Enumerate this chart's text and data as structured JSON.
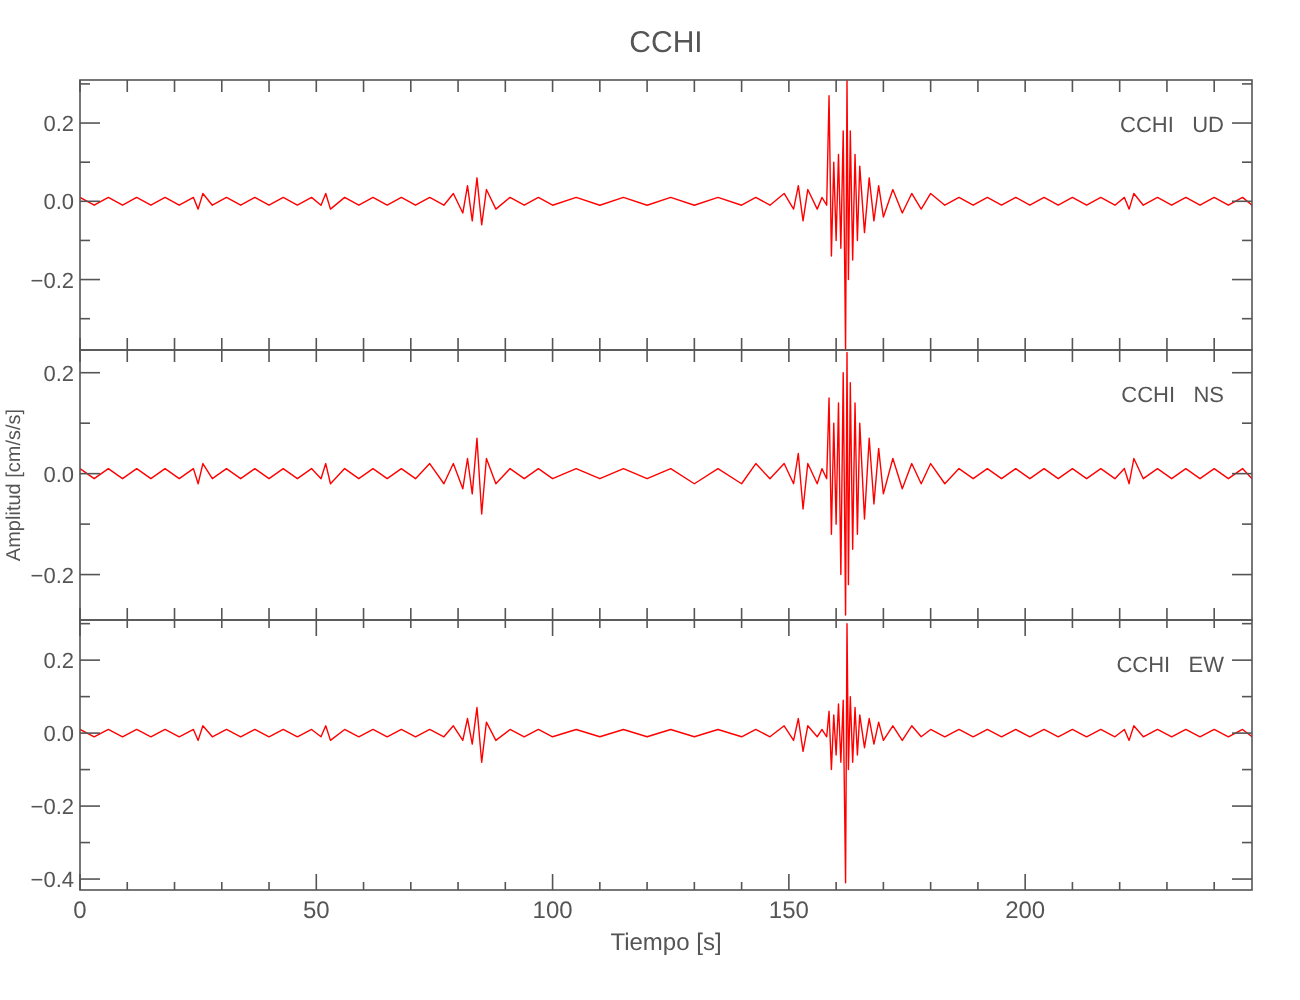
{
  "chart_data": [
    {
      "type": "line",
      "title": "CCHI",
      "annotations": [
        "CCHI   UD"
      ],
      "tick_labels": "y",
      "xlim": [
        0,
        248
      ],
      "xticks": [
        {
          "value": 0,
          "label": null
        },
        {
          "value": 10,
          "label": null
        },
        {
          "value": 20,
          "label": null
        },
        {
          "value": 30,
          "label": null
        },
        {
          "value": 40,
          "label": null
        },
        {
          "value": 50,
          "label": null
        },
        {
          "value": 60,
          "label": null
        },
        {
          "value": 70,
          "label": null
        },
        {
          "value": 80,
          "label": null
        },
        {
          "value": 90,
          "label": null
        },
        {
          "value": 100,
          "label": null
        },
        {
          "value": 110,
          "label": null
        },
        {
          "value": 120,
          "label": null
        },
        {
          "value": 130,
          "label": null
        },
        {
          "value": 140,
          "label": null
        },
        {
          "value": 150,
          "label": null
        },
        {
          "value": 160,
          "label": null
        },
        {
          "value": 170,
          "label": null
        },
        {
          "value": 180,
          "label": null
        },
        {
          "value": 190,
          "label": null
        },
        {
          "value": 200,
          "label": null
        },
        {
          "value": 210,
          "label": null
        },
        {
          "value": 220,
          "label": null
        },
        {
          "value": 230,
          "label": null
        },
        {
          "value": 240,
          "label": null
        }
      ],
      "ylim": [
        -0.38,
        0.31
      ],
      "yticks": [
        {
          "value": 0.3,
          "label": null
        },
        {
          "value": 0.2,
          "label": "0.2"
        },
        {
          "value": 0.1,
          "label": null
        },
        {
          "value": 0,
          "label": "0.0"
        },
        {
          "value": -0.1,
          "label": null
        },
        {
          "value": -0.2,
          "label": "−0.2"
        },
        {
          "value": -0.3,
          "label": null
        }
      ],
      "x": [
        0,
        3,
        6,
        9,
        12,
        15,
        18,
        21,
        24,
        25,
        26,
        28,
        31,
        34,
        37,
        40,
        43,
        46,
        49,
        51,
        52,
        53,
        56,
        59,
        62,
        65,
        68,
        71,
        74,
        77,
        79,
        81,
        82,
        83,
        84,
        85,
        86,
        88,
        91,
        94,
        97,
        100,
        105,
        110,
        115,
        120,
        125,
        130,
        135,
        140,
        143,
        146,
        149,
        151,
        152,
        153,
        154,
        156,
        157,
        158,
        158.5,
        159,
        159.5,
        160,
        160.5,
        161,
        161.5,
        162,
        162.3,
        162.6,
        163,
        163.5,
        164,
        164.5,
        165,
        166,
        167,
        168,
        169,
        170,
        172,
        174,
        176,
        178,
        180,
        183,
        186,
        189,
        192,
        195,
        198,
        201,
        204,
        207,
        210,
        213,
        216,
        219,
        221,
        222,
        223,
        225,
        228,
        231,
        234,
        237,
        240,
        243,
        246,
        248
      ],
      "series": [
        {
          "color": "#ff0000",
          "values": [
            0.01,
            -0.01,
            0.01,
            -0.01,
            0.01,
            -0.01,
            0.01,
            -0.01,
            0.01,
            -0.02,
            0.02,
            -0.01,
            0.01,
            -0.01,
            0.01,
            -0.01,
            0.01,
            -0.01,
            0.01,
            -0.01,
            0.02,
            -0.02,
            0.01,
            -0.01,
            0.01,
            -0.01,
            0.01,
            -0.01,
            0.01,
            -0.01,
            0.02,
            -0.03,
            0.04,
            -0.05,
            0.06,
            -0.06,
            0.03,
            -0.02,
            0.01,
            -0.01,
            0.01,
            -0.01,
            0.01,
            -0.01,
            0.01,
            -0.01,
            0.01,
            -0.01,
            0.01,
            -0.01,
            0.01,
            -0.01,
            0.02,
            -0.02,
            0.04,
            -0.05,
            0.03,
            -0.02,
            0.01,
            -0.01,
            0.27,
            -0.14,
            0.1,
            -0.1,
            0.12,
            -0.12,
            0.18,
            -0.38,
            0.31,
            -0.2,
            0.18,
            -0.15,
            0.12,
            -0.1,
            0.09,
            -0.08,
            0.06,
            -0.05,
            0.04,
            -0.04,
            0.03,
            -0.03,
            0.02,
            -0.02,
            0.02,
            -0.01,
            0.01,
            -0.01,
            0.01,
            -0.01,
            0.01,
            -0.01,
            0.01,
            -0.01,
            0.01,
            -0.01,
            0.01,
            -0.01,
            0.01,
            -0.02,
            0.02,
            -0.01,
            0.01,
            -0.01,
            0.01,
            -0.01,
            0.01,
            -0.01,
            0.01,
            -0.01
          ]
        }
      ]
    },
    {
      "type": "line",
      "ylabel": "Amplitud [cm/s/s]",
      "annotations": [
        "CCHI   NS"
      ],
      "tick_labels": "y",
      "xlim": [
        0,
        248
      ],
      "xticks": [
        {
          "value": 0,
          "label": null
        },
        {
          "value": 10,
          "label": null
        },
        {
          "value": 20,
          "label": null
        },
        {
          "value": 30,
          "label": null
        },
        {
          "value": 40,
          "label": null
        },
        {
          "value": 50,
          "label": null
        },
        {
          "value": 60,
          "label": null
        },
        {
          "value": 70,
          "label": null
        },
        {
          "value": 80,
          "label": null
        },
        {
          "value": 90,
          "label": null
        },
        {
          "value": 100,
          "label": null
        },
        {
          "value": 110,
          "label": null
        },
        {
          "value": 120,
          "label": null
        },
        {
          "value": 130,
          "label": null
        },
        {
          "value": 140,
          "label": null
        },
        {
          "value": 150,
          "label": null
        },
        {
          "value": 160,
          "label": null
        },
        {
          "value": 170,
          "label": null
        },
        {
          "value": 180,
          "label": null
        },
        {
          "value": 190,
          "label": null
        },
        {
          "value": 200,
          "label": null
        },
        {
          "value": 210,
          "label": null
        },
        {
          "value": 220,
          "label": null
        },
        {
          "value": 230,
          "label": null
        },
        {
          "value": 240,
          "label": null
        }
      ],
      "ylim": [
        -0.29,
        0.245
      ],
      "yticks": [
        {
          "value": 0.2,
          "label": "0.2"
        },
        {
          "value": 0.1,
          "label": null
        },
        {
          "value": 0,
          "label": "0.0"
        },
        {
          "value": -0.1,
          "label": null
        },
        {
          "value": -0.2,
          "label": "−0.2"
        }
      ],
      "x": [
        0,
        3,
        6,
        9,
        12,
        15,
        18,
        21,
        24,
        25,
        26,
        28,
        31,
        34,
        37,
        40,
        43,
        46,
        49,
        51,
        52,
        53,
        56,
        59,
        62,
        65,
        68,
        71,
        74,
        77,
        79,
        81,
        82,
        83,
        84,
        85,
        86,
        88,
        91,
        94,
        97,
        100,
        105,
        110,
        115,
        120,
        125,
        130,
        135,
        140,
        143,
        146,
        149,
        151,
        152,
        153,
        154,
        156,
        157,
        158,
        158.5,
        159,
        159.5,
        160,
        160.5,
        161,
        161.5,
        162,
        162.3,
        162.6,
        163,
        163.5,
        164,
        164.5,
        165,
        166,
        167,
        168,
        169,
        170,
        172,
        174,
        176,
        178,
        180,
        183,
        186,
        189,
        192,
        195,
        198,
        201,
        204,
        207,
        210,
        213,
        216,
        219,
        221,
        222,
        223,
        225,
        228,
        231,
        234,
        237,
        240,
        243,
        246,
        248
      ],
      "series": [
        {
          "color": "#ff0000",
          "values": [
            0.01,
            -0.01,
            0.01,
            -0.01,
            0.01,
            -0.01,
            0.01,
            -0.01,
            0.01,
            -0.02,
            0.02,
            -0.01,
            0.01,
            -0.01,
            0.01,
            -0.01,
            0.01,
            -0.01,
            0.01,
            -0.01,
            0.02,
            -0.02,
            0.01,
            -0.01,
            0.01,
            -0.01,
            0.01,
            -0.01,
            0.02,
            -0.02,
            0.02,
            -0.03,
            0.03,
            -0.04,
            0.07,
            -0.08,
            0.03,
            -0.02,
            0.01,
            -0.01,
            0.01,
            -0.01,
            0.01,
            -0.01,
            0.01,
            -0.01,
            0.01,
            -0.02,
            0.01,
            -0.02,
            0.02,
            -0.01,
            0.02,
            -0.02,
            0.04,
            -0.07,
            0.02,
            -0.02,
            0.01,
            -0.01,
            0.15,
            -0.12,
            0.1,
            -0.1,
            0.14,
            -0.2,
            0.2,
            -0.28,
            0.24,
            -0.22,
            0.18,
            -0.15,
            0.14,
            -0.12,
            0.1,
            -0.09,
            0.07,
            -0.06,
            0.05,
            -0.04,
            0.03,
            -0.03,
            0.02,
            -0.02,
            0.02,
            -0.02,
            0.01,
            -0.01,
            0.01,
            -0.01,
            0.01,
            -0.01,
            0.01,
            -0.01,
            0.01,
            -0.01,
            0.01,
            -0.01,
            0.01,
            -0.02,
            0.03,
            -0.01,
            0.01,
            -0.01,
            0.01,
            -0.01,
            0.01,
            -0.01,
            0.01,
            -0.01
          ]
        }
      ]
    },
    {
      "type": "line",
      "xlabel": "Tiempo [s]",
      "annotations": [
        "CCHI   EW"
      ],
      "xlim": [
        0,
        248
      ],
      "xticks": [
        {
          "value": 0,
          "label": "0"
        },
        {
          "value": 10,
          "label": null
        },
        {
          "value": 20,
          "label": null
        },
        {
          "value": 30,
          "label": null
        },
        {
          "value": 40,
          "label": null
        },
        {
          "value": 50,
          "label": "50"
        },
        {
          "value": 60,
          "label": null
        },
        {
          "value": 70,
          "label": null
        },
        {
          "value": 80,
          "label": null
        },
        {
          "value": 90,
          "label": null
        },
        {
          "value": 100,
          "label": "100"
        },
        {
          "value": 110,
          "label": null
        },
        {
          "value": 120,
          "label": null
        },
        {
          "value": 130,
          "label": null
        },
        {
          "value": 140,
          "label": null
        },
        {
          "value": 150,
          "label": "150"
        },
        {
          "value": 160,
          "label": null
        },
        {
          "value": 170,
          "label": null
        },
        {
          "value": 180,
          "label": null
        },
        {
          "value": 190,
          "label": null
        },
        {
          "value": 200,
          "label": "200"
        },
        {
          "value": 210,
          "label": null
        },
        {
          "value": 220,
          "label": null
        },
        {
          "value": 230,
          "label": null
        },
        {
          "value": 240,
          "label": null
        }
      ],
      "ylim": [
        -0.43,
        0.31
      ],
      "yticks": [
        {
          "value": 0.3,
          "label": null
        },
        {
          "value": 0.2,
          "label": "0.2"
        },
        {
          "value": 0.1,
          "label": null
        },
        {
          "value": 0,
          "label": "0.0"
        },
        {
          "value": -0.1,
          "label": null
        },
        {
          "value": -0.2,
          "label": "−0.2"
        },
        {
          "value": -0.3,
          "label": null
        },
        {
          "value": -0.4,
          "label": "−0.4"
        }
      ],
      "x": [
        0,
        3,
        6,
        9,
        12,
        15,
        18,
        21,
        24,
        25,
        26,
        28,
        31,
        34,
        37,
        40,
        43,
        46,
        49,
        51,
        52,
        53,
        56,
        59,
        62,
        65,
        68,
        71,
        74,
        77,
        79,
        81,
        82,
        83,
        84,
        85,
        86,
        88,
        91,
        94,
        97,
        100,
        105,
        110,
        115,
        120,
        125,
        130,
        135,
        140,
        143,
        146,
        149,
        151,
        152,
        153,
        154,
        156,
        157,
        158,
        158.5,
        159,
        159.5,
        160,
        160.5,
        161,
        161.5,
        162,
        162.3,
        162.6,
        163,
        163.5,
        164,
        164.5,
        165,
        166,
        167,
        168,
        169,
        170,
        172,
        174,
        176,
        178,
        180,
        183,
        186,
        189,
        192,
        195,
        198,
        201,
        204,
        207,
        210,
        213,
        216,
        219,
        221,
        222,
        223,
        225,
        228,
        231,
        234,
        237,
        240,
        243,
        246,
        248
      ],
      "series": [
        {
          "color": "#ff0000",
          "values": [
            0.01,
            -0.01,
            0.01,
            -0.01,
            0.01,
            -0.01,
            0.01,
            -0.01,
            0.01,
            -0.02,
            0.02,
            -0.01,
            0.01,
            -0.01,
            0.01,
            -0.01,
            0.01,
            -0.01,
            0.01,
            -0.01,
            0.02,
            -0.02,
            0.01,
            -0.01,
            0.01,
            -0.01,
            0.01,
            -0.01,
            0.01,
            -0.01,
            0.02,
            -0.02,
            0.04,
            -0.03,
            0.07,
            -0.08,
            0.03,
            -0.02,
            0.01,
            -0.01,
            0.01,
            -0.01,
            0.01,
            -0.01,
            0.01,
            -0.01,
            0.01,
            -0.01,
            0.01,
            -0.01,
            0.01,
            -0.01,
            0.02,
            -0.02,
            0.04,
            -0.05,
            0.02,
            -0.01,
            0.01,
            -0.01,
            0.06,
            -0.1,
            0.05,
            -0.06,
            0.08,
            -0.08,
            0.09,
            -0.41,
            0.3,
            -0.1,
            0.1,
            -0.08,
            0.07,
            -0.06,
            0.05,
            -0.04,
            0.04,
            -0.03,
            0.03,
            -0.02,
            0.02,
            -0.02,
            0.02,
            -0.01,
            0.01,
            -0.01,
            0.01,
            -0.01,
            0.01,
            -0.01,
            0.01,
            -0.01,
            0.01,
            -0.01,
            0.01,
            -0.01,
            0.01,
            -0.01,
            0.01,
            -0.02,
            0.02,
            -0.01,
            0.01,
            -0.01,
            0.01,
            -0.01,
            0.01,
            -0.01,
            0.01,
            -0.01
          ]
        }
      ]
    }
  ]
}
